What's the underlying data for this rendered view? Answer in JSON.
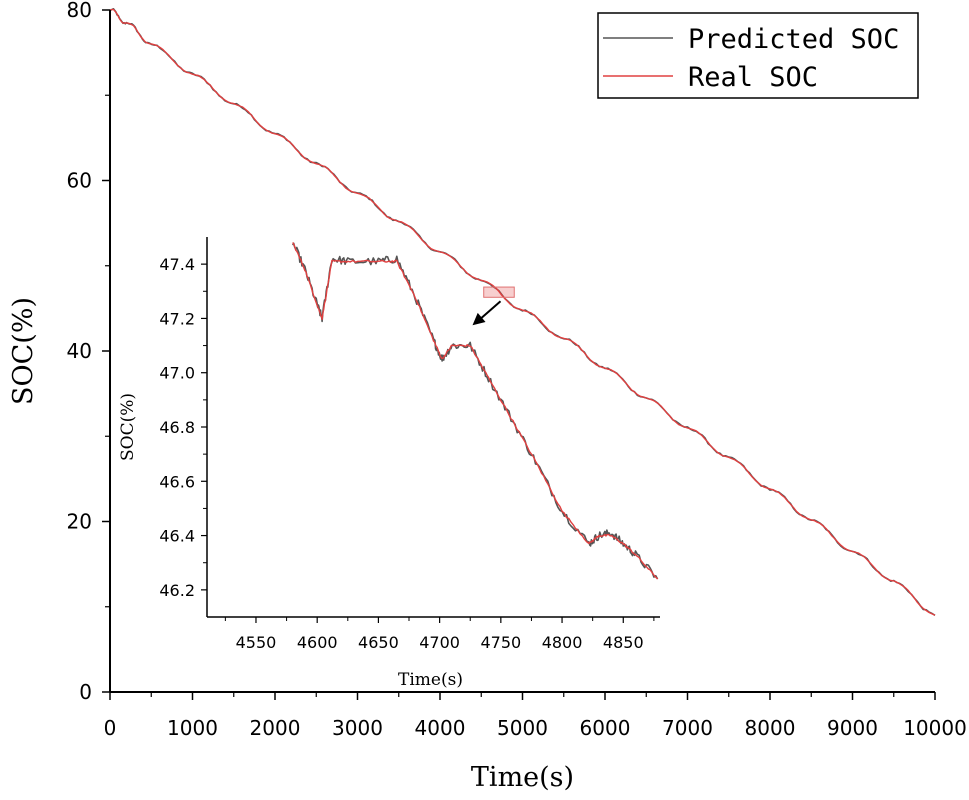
{
  "chart_data": [
    {
      "type": "line",
      "title": "",
      "xlabel": "Time(s)",
      "ylabel": "SOC(%)",
      "xlim": [
        0,
        10000
      ],
      "ylim": [
        0,
        80
      ],
      "x_ticks": [
        "0",
        "1000",
        "2000",
        "3000",
        "4000",
        "5000",
        "6000",
        "7000",
        "8000",
        "9000",
        "10000"
      ],
      "y_ticks": [
        "0",
        "20",
        "40",
        "60",
        "80"
      ],
      "grid": false,
      "legend_position": "top-right",
      "series": [
        {
          "name": "Predicted SOC",
          "color": "#555555",
          "x": [
            0,
            200,
            500,
            1000,
            1500,
            2000,
            2500,
            3000,
            3500,
            4000,
            4500,
            5000,
            5500,
            6000,
            6500,
            7000,
            7500,
            8000,
            8500,
            9000,
            9500,
            10000
          ],
          "y": [
            80,
            78.5,
            76,
            72.5,
            69,
            65.5,
            62,
            58.5,
            55.2,
            51.6,
            48.3,
            44.8,
            41.5,
            38,
            34.5,
            31,
            27.5,
            23.8,
            20.2,
            16.5,
            13.0,
            9.0
          ]
        },
        {
          "name": "Real SOC",
          "color": "#e04040",
          "x": [
            0,
            200,
            500,
            1000,
            1500,
            2000,
            2500,
            3000,
            3500,
            4000,
            4500,
            5000,
            5500,
            6000,
            6500,
            7000,
            7500,
            8000,
            8500,
            9000,
            9500,
            10000
          ],
          "y": [
            80,
            78.5,
            76,
            72.5,
            69,
            65.5,
            62,
            58.5,
            55.2,
            51.6,
            48.3,
            44.8,
            41.5,
            38,
            34.5,
            31,
            27.5,
            23.8,
            20.2,
            16.5,
            13.0,
            9.0
          ]
        }
      ],
      "highlight_box": {
        "x": [
          4530,
          4900
        ],
        "y": [
          46.3,
          47.5
        ]
      }
    },
    {
      "type": "line",
      "title": "",
      "xlabel": "Time(s)",
      "ylabel": "SOC(%)",
      "xlim": [
        4510,
        4880
      ],
      "ylim": [
        46.1,
        47.5
      ],
      "x_ticks": [
        "4550",
        "4600",
        "4650",
        "4700",
        "4750",
        "4800",
        "4850"
      ],
      "y_ticks": [
        "46.2",
        "46.4",
        "46.6",
        "46.8",
        "47.0",
        "47.2",
        "47.4"
      ],
      "grid": false,
      "series": [
        {
          "name": "Predicted SOC",
          "color": "#555555",
          "x": [
            4580,
            4590,
            4600,
            4604,
            4612,
            4625,
            4650,
            4665,
            4680,
            4695,
            4702,
            4710,
            4725,
            4740,
            4760,
            4780,
            4800,
            4822,
            4830,
            4840,
            4850,
            4860,
            4878
          ],
          "y": [
            47.48,
            47.38,
            47.25,
            47.2,
            47.42,
            47.41,
            47.41,
            47.42,
            47.28,
            47.12,
            47.05,
            47.1,
            47.1,
            46.98,
            46.82,
            46.66,
            46.49,
            46.37,
            46.4,
            46.41,
            46.37,
            46.33,
            46.24
          ]
        },
        {
          "name": "Real SOC",
          "color": "#e04040",
          "x": [
            4580,
            4590,
            4600,
            4604,
            4612,
            4625,
            4650,
            4665,
            4680,
            4695,
            4702,
            4710,
            4725,
            4740,
            4760,
            4780,
            4800,
            4822,
            4830,
            4840,
            4850,
            4860,
            4878
          ],
          "y": [
            47.48,
            47.38,
            47.25,
            47.2,
            47.41,
            47.41,
            47.41,
            47.41,
            47.28,
            47.12,
            47.05,
            47.1,
            47.1,
            46.98,
            46.82,
            46.66,
            46.49,
            46.37,
            46.4,
            46.4,
            46.37,
            46.33,
            46.24
          ]
        }
      ]
    }
  ]
}
